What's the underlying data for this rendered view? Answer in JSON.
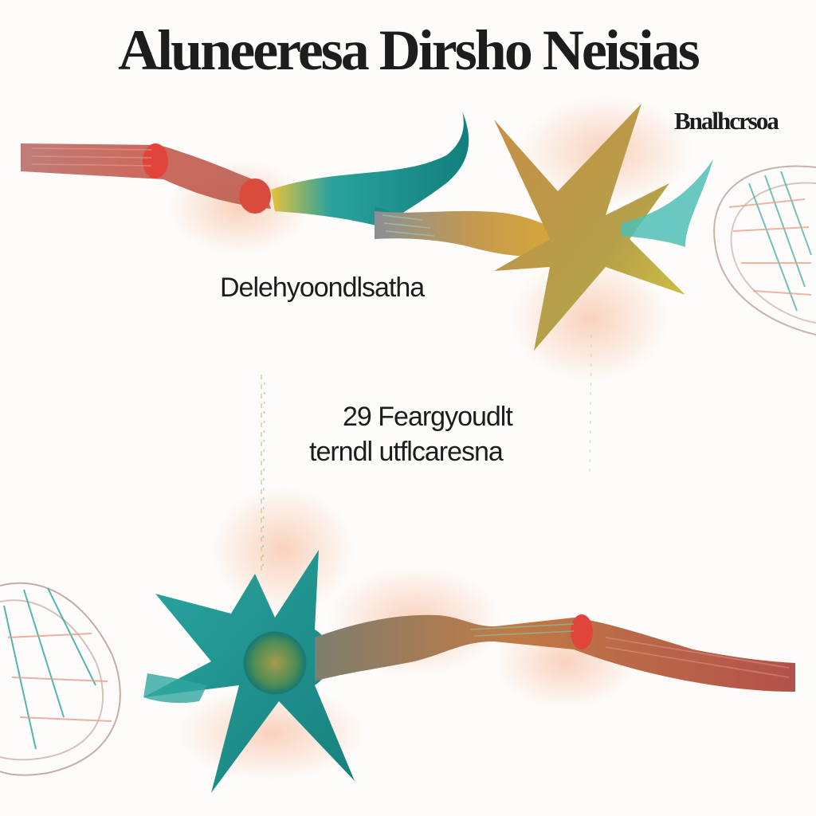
{
  "title": "Aluneeresa Dirsho Neisias",
  "labels": {
    "top_right": "Bnalhcrsoa",
    "mid_left": "Delehyoondlsatha",
    "center_line1": "29 Feargyoudlt",
    "center_line2": "terndl utflcaresna"
  },
  "colors": {
    "teal": "#1f9e9a",
    "gold": "#d9a634",
    "red": "#d9453a",
    "glow": "#f6b08a",
    "text": "#1d1d1d"
  }
}
